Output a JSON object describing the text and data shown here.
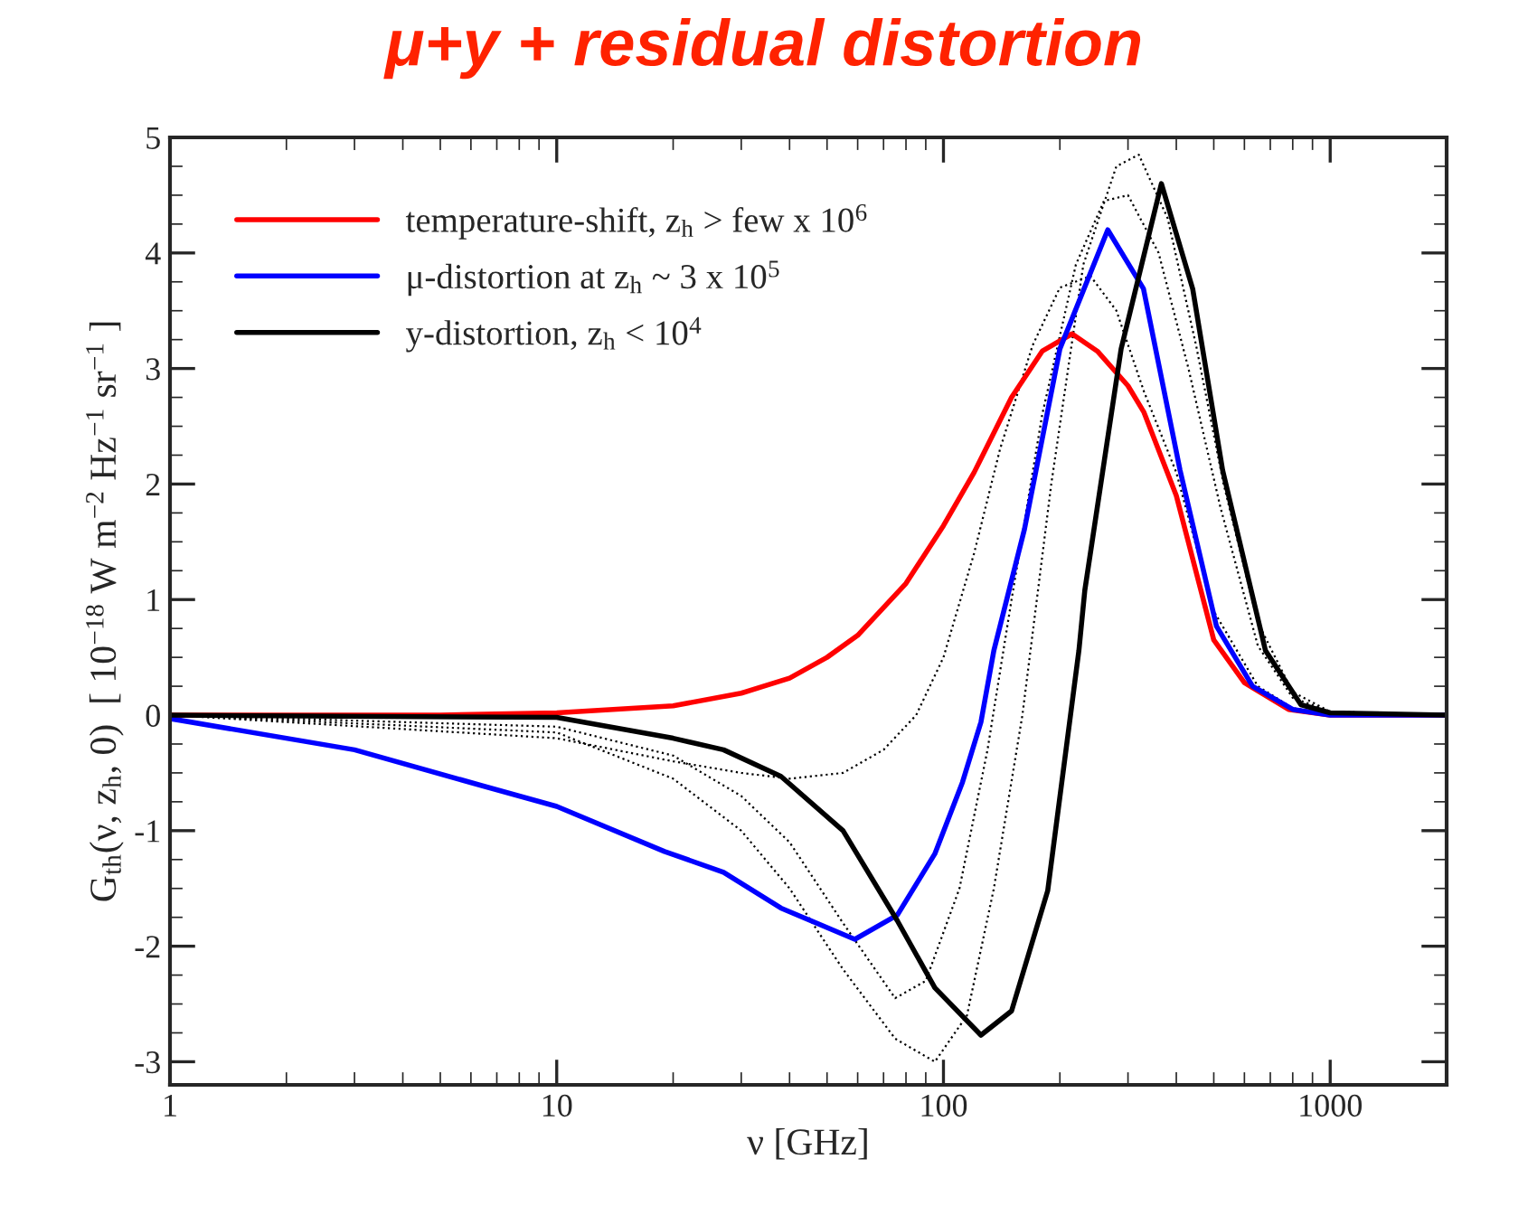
{
  "chart_data": {
    "type": "line",
    "title": "μ+y + residual distortion",
    "xlabel": "ν [GHz]",
    "ylabel": "G$_{th}$(ν, z$_{h}$, 0)  [ 10$^{−18}$ W m$^{−2}$ Hz$^{−1}$ sr$^{−1}$ ]",
    "log": "x",
    "xlim": [
      1,
      2000
    ],
    "xticks": [
      1,
      10,
      100,
      1000
    ],
    "ylim": [
      -3.2,
      5
    ],
    "yticks": [
      -3,
      -2,
      -1,
      0,
      1,
      2,
      3,
      4,
      5
    ],
    "grid": false,
    "legend": "top left",
    "line_style": "solid",
    "marker": "none",
    "series": [
      {
        "line_style": "dotted",
        "color": "#000000",
        "x": [
          1,
          10,
          20,
          30,
          40,
          55,
          70,
          85,
          100,
          120,
          140,
          170,
          200,
          240,
          280,
          330,
          400,
          500,
          650,
          800,
          1000,
          2000
        ],
        "values": [
          0,
          -0.2,
          -0.4,
          -0.5,
          -0.55,
          -0.5,
          -0.3,
          0.0,
          0.5,
          1.4,
          2.3,
          3.2,
          3.7,
          3.8,
          3.5,
          2.8,
          2.1,
          0.9,
          0.25,
          0.06,
          0.01,
          0
        ]
      },
      {
        "line_style": "dotted",
        "color": "#000000",
        "x": [
          1,
          10,
          20,
          30,
          40,
          55,
          75,
          90,
          110,
          130,
          150,
          180,
          220,
          260,
          300,
          360,
          430,
          520,
          650,
          800,
          1000,
          2000
        ],
        "values": [
          0,
          -0.1,
          -0.35,
          -0.7,
          -1.1,
          -1.8,
          -2.45,
          -2.3,
          -1.5,
          -0.3,
          1.0,
          2.6,
          3.9,
          4.45,
          4.5,
          4.0,
          3.0,
          1.8,
          0.6,
          0.15,
          0.03,
          0
        ]
      },
      {
        "line_style": "dotted",
        "color": "#000000",
        "x": [
          1,
          10,
          20,
          30,
          40,
          55,
          75,
          95,
          115,
          135,
          160,
          190,
          230,
          280,
          320,
          380,
          450,
          530,
          650,
          800,
          1000,
          2000
        ],
        "values": [
          0,
          -0.15,
          -0.55,
          -1.0,
          -1.5,
          -2.2,
          -2.8,
          -3.0,
          -2.6,
          -1.5,
          0.0,
          2.0,
          3.9,
          4.75,
          4.85,
          4.3,
          3.2,
          2.0,
          0.8,
          0.2,
          0.03,
          0
        ]
      },
      {
        "name": "temperature-shift, z$_{h}$ > few x 10$^{6}$",
        "color": "#ff0000",
        "x": [
          1,
          3,
          5,
          10,
          20,
          30,
          40,
          50,
          60,
          80,
          100,
          120,
          150,
          180,
          215,
          250,
          300,
          330,
          400,
          500,
          600,
          780,
          1000,
          2000
        ],
        "values": [
          0,
          0,
          0,
          0.02,
          0.08,
          0.19,
          0.32,
          0.5,
          0.69,
          1.14,
          1.64,
          2.1,
          2.75,
          3.15,
          3.3,
          3.15,
          2.85,
          2.62,
          1.9,
          0.65,
          0.28,
          0.05,
          0,
          0
        ]
      },
      {
        "name": "μ-distortion at z$_{h}$ ~ 3 x 10$^{5}$",
        "color": "#0000ff",
        "x": [
          1,
          3,
          6.4,
          10,
          19,
          27,
          38,
          59,
          76,
          95,
          112,
          125,
          135,
          162,
          200,
          266,
          329,
          409,
          508,
          630,
          800,
          1000,
          2000
        ],
        "values": [
          -0.03,
          -0.3,
          -0.61,
          -0.79,
          -1.18,
          -1.36,
          -1.67,
          -1.94,
          -1.73,
          -1.2,
          -0.58,
          -0.06,
          0.56,
          1.61,
          3.17,
          4.2,
          3.69,
          2.12,
          0.77,
          0.25,
          0.05,
          0,
          0
        ]
      },
      {
        "name": "y-distortion, z$_{h}$ < 10$^{4}$",
        "color": "#000000",
        "x": [
          1,
          10,
          20,
          27,
          38,
          55,
          76,
          95,
          125,
          150,
          186,
          224,
          232,
          288,
          366,
          441,
          527,
          680,
          840,
          1000,
          2000
        ],
        "values": [
          0,
          -0.02,
          -0.2,
          -0.3,
          -0.53,
          -1.0,
          -1.78,
          -2.36,
          -2.77,
          -2.56,
          -1.52,
          0.56,
          1.08,
          3.17,
          4.6,
          3.69,
          2.12,
          0.56,
          0.09,
          0.02,
          0
        ]
      }
    ]
  }
}
